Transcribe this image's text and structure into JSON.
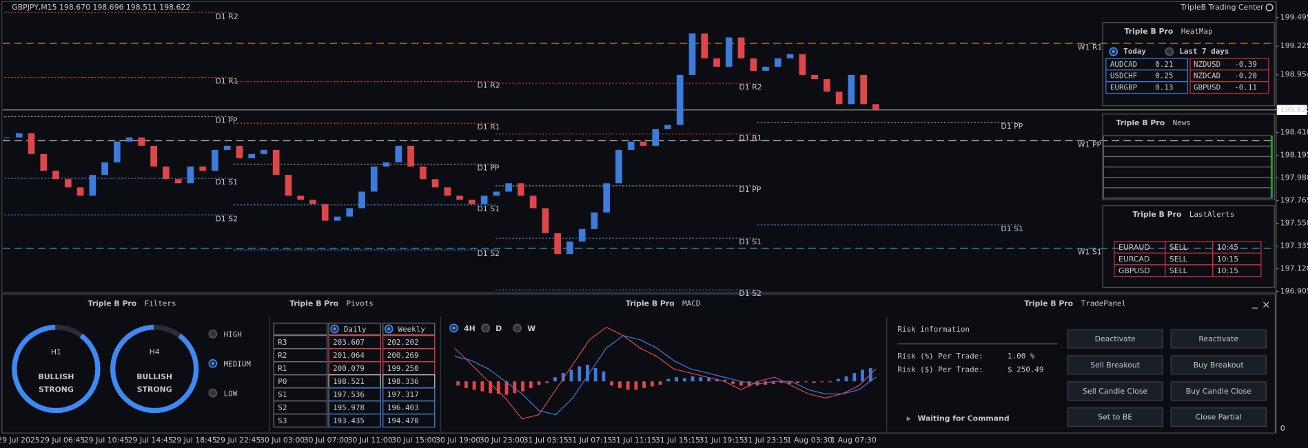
{
  "header": {
    "symbol_info": "GBPJPY,M15  198.670 198.696 198.511 198.622",
    "app_name": "TripleB Trading Center"
  },
  "chart_data": [
    {
      "type": "candle",
      "values": [
        198.362,
        198.402,
        198.205,
        198.047,
        197.968,
        197.89,
        197.811,
        198.008,
        198.126,
        198.323,
        198.362,
        198.283,
        198.087,
        197.968,
        197.929,
        198.087,
        198.047,
        198.244,
        198.283,
        198.165,
        198.205,
        198.244,
        198.008,
        197.811,
        197.772,
        197.732,
        197.575,
        197.614,
        197.693,
        197.85,
        198.087,
        198.126,
        198.283,
        198.087,
        197.968,
        197.89,
        197.811,
        197.772,
        197.732,
        197.811,
        197.85,
        197.929,
        197.811,
        197.693,
        197.457,
        197.26,
        197.378,
        197.496,
        197.653,
        197.929,
        198.244,
        198.323,
        198.283,
        198.441,
        198.48,
        198.953,
        199.346,
        199.11,
        199.031,
        199.307,
        199.11,
        198.992,
        199.031,
        199.11,
        199.15,
        198.953,
        198.913,
        198.795,
        198.677,
        198.953,
        198.677,
        198.622
      ],
      "up_color": "#3d7bdc",
      "down_color": "#e0454a",
      "current_price": 198.622,
      "ylim": [
        196.898,
        199.638
      ],
      "yticks": [
        199.495,
        199.225,
        198.954,
        {
          "value": 198.41,
          "label": "198.410"
        },
        198.195,
        {
          "value": 197.98,
          "label": "197.980"
        },
        197.765,
        {
          "value": 197.55,
          "label": "197.550"
        },
        197.335,
        {
          "value": 197.12,
          "label": "197.120"
        },
        196.905
      ],
      "x_labels": [
        "29 Jul 2025",
        "29 Jul 06:45",
        "29 Jul 10:45",
        "29 Jul 14:45",
        "29 Jul 18:45",
        "29 Jul 22:45",
        "30 Jul 03:00",
        "30 Jul 07:00",
        "30 Jul 11:00",
        "30 Jul 15:00",
        "30 Jul 19:00",
        "30 Jul 23:00",
        "31 Jul 03:15",
        "31 Jul 07:15",
        "31 Jul 11:15",
        "31 Jul 15:15",
        "31 Jul 19:15",
        "31 Jul 23:15",
        "1 Aug 03:30",
        "1 Aug 07:30"
      ],
      "weekly_levels": [
        {
          "label": "W1 R1",
          "value": 199.252,
          "color": "#e8a21a"
        },
        {
          "label": "W1 PP",
          "value": 198.331,
          "color": "#b8b8b8"
        },
        {
          "label": "W1 S1",
          "value": 197.315,
          "color": "#2fb3d8"
        }
      ],
      "daily_levels": [
        [
          {
            "label": "D1 R2",
            "value": 199.543,
            "color": "#d0303a"
          },
          {
            "label": "D1 R1",
            "value": 198.929,
            "color": "#d0303a"
          },
          {
            "label": "D1 PP",
            "value": 198.559,
            "color": "#9a9a9a"
          },
          {
            "label": "D1 S1",
            "value": 197.976,
            "color": "#4a7fd0"
          },
          {
            "label": "D1 S2",
            "value": 197.63,
            "color": "#4a7fd0"
          }
        ],
        [
          {
            "label": "D1 R2",
            "value": 198.89,
            "color": "#d0303a"
          },
          {
            "label": "D1 R1",
            "value": 198.496,
            "color": "#d0303a"
          },
          {
            "label": "D1 PP",
            "value": 198.11,
            "color": "#9a9a9a"
          },
          {
            "label": "D1 S1",
            "value": 197.724,
            "color": "#4a7fd0"
          },
          {
            "label": "D1 S2",
            "value": 197.299,
            "color": "#4a7fd0"
          }
        ],
        [
          {
            "label": "D1 R2",
            "value": 198.874,
            "color": "#d0303a"
          },
          {
            "label": "D1 R1",
            "value": 198.394,
            "color": "#d0303a"
          },
          {
            "label": "D1 PP",
            "value": 197.905,
            "color": "#9a9a9a"
          },
          {
            "label": "D1 S1",
            "value": 197.409,
            "color": "#4a7fd0"
          },
          {
            "label": "D1 S2",
            "value": 196.921,
            "color": "#4a7fd0"
          }
        ],
        [
          {
            "label": "D1 PP",
            "value": 198.504,
            "color": "#9a9a9a"
          },
          {
            "label": "D1 S1",
            "value": 197.535,
            "color": "#4a7fd0"
          }
        ]
      ],
      "indicator_scale": 0
    },
    {
      "type": "macd",
      "brand": "Triple B Pro",
      "title": "MACD",
      "timeframes": [
        "4H",
        "D",
        "W"
      ],
      "selected": 0,
      "histogram": [
        -5,
        -8,
        -10,
        -12,
        -14,
        -15,
        -16,
        -14,
        -12,
        -8,
        -4,
        -2,
        5,
        10,
        14,
        18,
        20,
        16,
        12,
        -5,
        -8,
        -10,
        -10,
        -8,
        -6,
        -4,
        3,
        5,
        4,
        6,
        5,
        4,
        3,
        2,
        -3,
        -5,
        -6,
        -5,
        -4,
        -3,
        -2,
        -3,
        -2,
        -1,
        -2,
        -1,
        -1,
        3,
        6,
        10,
        14,
        16
      ],
      "main": [
        40,
        20,
        0,
        -20,
        -45,
        -40,
        -10,
        20,
        50,
        65,
        55,
        40,
        30,
        15,
        10,
        5,
        0,
        -10,
        0,
        5,
        -5,
        -15,
        -20,
        -15,
        -5,
        15
      ],
      "signal": [
        30,
        25,
        15,
        0,
        -15,
        -35,
        -40,
        -20,
        10,
        40,
        55,
        50,
        40,
        25,
        15,
        10,
        5,
        0,
        -3,
        0,
        0,
        -10,
        -15,
        -15,
        -10,
        5
      ],
      "positive_color": "#3d7bdc",
      "negative_color": "#e0454a",
      "main_color": "#e0454a",
      "signal_color": "#3d7bdc"
    }
  ],
  "heatmap": {
    "brand": "Triple B Pro",
    "title": "HeatMap",
    "options": [
      "Today",
      "Last 7 days"
    ],
    "selected": 0,
    "rows": [
      [
        "AUDCAD",
        "0.21",
        "NZDUSD",
        "-0.39"
      ],
      [
        "USDCHF",
        "0.25",
        "NZDCAD",
        "-0.20"
      ],
      [
        "EURGBP",
        "0.13",
        "GBPUSD",
        "-0.11"
      ]
    ]
  },
  "news": {
    "brand": "Triple B Pro",
    "title": "News"
  },
  "alerts": {
    "brand": "Triple B Pro",
    "title": "LastAlerts",
    "rows": [
      [
        "EURAUD",
        "SELL",
        "10:45"
      ],
      [
        "EURCAD",
        "SELL",
        "10:15"
      ],
      [
        "GBPUSD",
        "SELL",
        "10:15"
      ]
    ]
  },
  "filters": {
    "brand": "Triple B Pro",
    "title": "Filters",
    "gauges": [
      {
        "timeframe": "H1",
        "bias": "BULLISH",
        "strength": "STRONG"
      },
      {
        "timeframe": "H4",
        "bias": "BULLISH",
        "strength": "STRONG"
      }
    ],
    "levels": [
      "HIGH",
      "MEDIUM",
      "LOW"
    ],
    "selected": 1
  },
  "pivots": {
    "brand": "Triple B Pro",
    "title": "Pivots",
    "columns": [
      "Daily",
      "Weekly"
    ],
    "rows": [
      [
        "R3",
        "203.607",
        "202.202"
      ],
      [
        "R2",
        "201.064",
        "200.269"
      ],
      [
        "R1",
        "200.079",
        "199.250"
      ],
      [
        "P0",
        "198.521",
        "198.336"
      ],
      [
        "S1",
        "197.536",
        "197.317"
      ],
      [
        "S2",
        "195.978",
        "196.403"
      ],
      [
        "S3",
        "193.435",
        "194.470"
      ]
    ],
    "row_colors": [
      "#e0454a",
      "#e0454a",
      "#e0454a",
      "#c8c8c8",
      "#4a8ae0",
      "#4a8ae0",
      "#4a8ae0"
    ]
  },
  "trade_panel": {
    "brand": "Triple B Pro",
    "title": "TradePanel",
    "heading": "Risk information",
    "risk_pct_label": "Risk (%) Per Trade:",
    "risk_pct": "1.00 %",
    "risk_usd_label": "Risk ($) Per Trade:",
    "risk_usd": "$ 250.49",
    "buttons": [
      "Deactivate",
      "Reactivate",
      "Sell Breakout",
      "Buy Breakout",
      "Sell Candle Close",
      "Buy Candle Close",
      "Set to BE",
      "Close Partial"
    ],
    "status": "Waiting for Command"
  }
}
